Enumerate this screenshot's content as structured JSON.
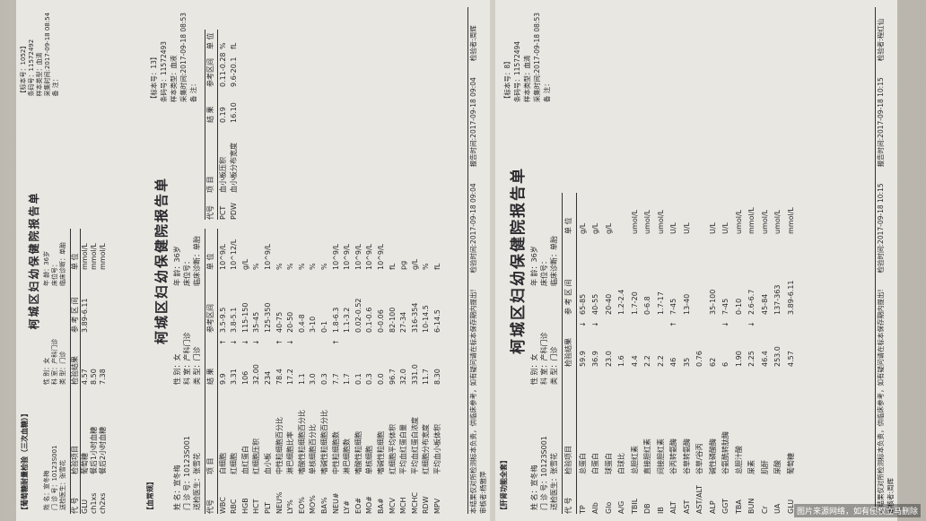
{
  "reports": [
    {
      "tag": "【葡萄糖耐量检验（三次血糖）】",
      "title": "柯城区妇幼保健院报告单",
      "meta": [
        "【标本号：1052】",
        "条码号：11572492",
        "样本类型：血清",
        "采集时间:2017-09-18 08:54",
        "备 注："
      ],
      "patient": [
        "姓 名：宣冬梅",
        "性 别：女",
        "年 龄：36岁",
        "门 诊 号：10123S001",
        "科 室：产科门诊",
        "床位号：",
        "送检医生：张雪花",
        "类 型：门诊",
        "临床诊断：单胎"
      ],
      "headers": [
        "代 号",
        "检验项目",
        "检验结果",
        "参 考 区 间",
        "单 位"
      ],
      "rows": [
        {
          "code": "GLU",
          "name": "葡萄糖",
          "result": "4.57",
          "range": "3.89-6.11",
          "unit": "mmol/L"
        },
        {
          "code": "ch1xs",
          "name": "餐后1小时血糖",
          "result": "8.50",
          "unit": "mmol/L"
        },
        {
          "code": "ch2xs",
          "name": "餐后2小时血糖",
          "result": "7.38",
          "unit": "mmol/L"
        }
      ]
    },
    {
      "tag": "【血常规】",
      "title": "柯城区妇幼保健院报告单",
      "meta": [
        "【标本号：13】",
        "条码号：11572493",
        "样本类型：血液",
        "采集时间:2017-09-18 08:53",
        "备 注："
      ],
      "patient": [
        "姓 名：宣冬梅",
        "性 别：女",
        "年 龄：36岁",
        "门 诊 号：10123S001",
        "科 室：产科门诊",
        "床位号：",
        "送检医生：张雪花",
        "类 型：门诊",
        "临床诊断：单胎"
      ],
      "headers": [
        "代号",
        "项 目",
        "结 果",
        "参考区间",
        "单 位"
      ],
      "rows": [
        {
          "code": "WBC",
          "name": "白细胞",
          "result": "9.9",
          "flag": "↑",
          "range": "3.5-9.5",
          "unit": "10^9/L"
        },
        {
          "code": "RBC",
          "name": "红细胞",
          "result": "3.31",
          "flag": "↓",
          "range": "3.8-5.1",
          "unit": "10^12/L"
        },
        {
          "code": "HGB",
          "name": "血红蛋白",
          "result": "106",
          "flag": "↓",
          "range": "115-150",
          "unit": "g/L"
        },
        {
          "code": "HCT",
          "name": "红细胞压积",
          "result": "32.00",
          "flag": "↓",
          "range": "35-45",
          "unit": "%"
        },
        {
          "code": "PLT",
          "name": "血小板",
          "result": "234",
          "range": "125-350",
          "unit": "10^9/L"
        },
        {
          "code": "NEU%",
          "name": "中性粒细胞百分比",
          "result": "78.4",
          "flag": "↑",
          "range": "40-75",
          "unit": "%"
        },
        {
          "code": "LY%",
          "name": "淋巴细胞比率",
          "result": "17.2",
          "flag": "↓",
          "range": "20-50",
          "unit": "%"
        },
        {
          "code": "EO%",
          "name": "嗜酸性粒细胞百分比",
          "result": "1.1",
          "range": "0.4-8",
          "unit": "%"
        },
        {
          "code": "MO%",
          "name": "单核细胞百分比",
          "result": "3.0",
          "range": "3-10",
          "unit": "%"
        },
        {
          "code": "BA%",
          "name": "嗜碱性粒细胞百分比",
          "result": "0.3",
          "range": "0-1",
          "unit": "%"
        },
        {
          "code": "NEU#",
          "name": "中性粒细胞数",
          "result": "7.7",
          "flag": "↑",
          "range": "1.8-6.3",
          "unit": "10^9/L"
        },
        {
          "code": "LY#",
          "name": "淋巴细胞数",
          "result": "1.7",
          "range": "1.1-3.2",
          "unit": "10^9/L"
        },
        {
          "code": "EO#",
          "name": "嗜酸性粒细胞",
          "result": "0.1",
          "range": "0.02-0.52",
          "unit": "10^9/L"
        },
        {
          "code": "MO#",
          "name": "单核细胞",
          "result": "0.3",
          "range": "0.1-0.6",
          "unit": "10^9/L"
        },
        {
          "code": "BA#",
          "name": "嗜碱性粒细胞",
          "result": "0.0",
          "range": "0-0.06",
          "unit": "10^9/L"
        },
        {
          "code": "MCV",
          "name": "红细胞平均体积",
          "result": "96.7",
          "range": "82-100",
          "unit": "fL"
        },
        {
          "code": "MCH",
          "name": "平均血红蛋白量",
          "result": "32.0",
          "range": "27-34",
          "unit": "pg"
        },
        {
          "code": "MCHC",
          "name": "平均血红蛋白浓度",
          "result": "331.0",
          "range": "316-354",
          "unit": "g/L"
        },
        {
          "code": "RDW",
          "name": "红细胞分布宽度",
          "result": "11.7",
          "range": "10-14.5",
          "unit": "%"
        },
        {
          "code": "MPV",
          "name": "平均血小板体积",
          "result": "8.30",
          "range": "6-14.5",
          "unit": "fL"
        }
      ],
      "side_headers": [
        "代号",
        "项 目",
        "结 果",
        "参考区间",
        "单 位"
      ],
      "side_rows": [
        {
          "code": "PCT",
          "name": "血小板压积",
          "result": "0.19",
          "range": "0.11-0.28",
          "unit": "%"
        },
        {
          "code": "PDW",
          "name": "血小板分布宽度",
          "result": "16.10",
          "range": "9.6-20.1",
          "unit": "fL"
        }
      ],
      "footer": [
        "检验时间:2017-09-18 09:04",
        "报告时间:2017-09-18 09:04",
        "检验者:周辉",
        "审核者:杨雅萍"
      ],
      "disclaimer": "本结果仅对所检测标本负责，供临床参考，如有疑问请在标本保存期内提出!"
    },
    {
      "tag": "【肝肾功能全套】",
      "title": "柯城区妇幼保健院报告单",
      "meta": [
        "【标本号：8】",
        "条码号：11572494",
        "样本类型：血清",
        "采集时间:2017-09-18 08:53",
        "备 注："
      ],
      "patient": [
        "姓 名：宣冬梅",
        "性 别：女",
        "年 龄：36岁",
        "门 诊 号：10123S001",
        "科 室：产科门诊",
        "床位号：",
        "送检医生：张雪花",
        "类 型：门诊",
        "临床诊断：单胎"
      ],
      "headers": [
        "代 号",
        "检验项目",
        "检验结果",
        "参 考 区 间",
        "单 位"
      ],
      "rows": [
        {
          "code": "TP",
          "name": "总蛋白",
          "result": "59.9",
          "flag": "↓",
          "range": "65-85",
          "unit": "g/L"
        },
        {
          "code": "Alb",
          "name": "白蛋白",
          "result": "36.9",
          "flag": "↓",
          "range": "40-55",
          "unit": "g/L"
        },
        {
          "code": "Glo",
          "name": "球蛋白",
          "result": "23.0",
          "range": "20-40",
          "unit": "g/L"
        },
        {
          "code": "A/G",
          "name": "白球比",
          "result": "1.6",
          "range": "1.2-2.4"
        },
        {
          "code": "TBIL",
          "name": "总胆红素",
          "result": "4.4",
          "range": "1.7-20",
          "unit": "umol/L"
        },
        {
          "code": "DB",
          "name": "直接胆红素",
          "result": "2.2",
          "range": "0-6.8",
          "unit": "umol/L"
        },
        {
          "code": "IB",
          "name": "间接胆红素",
          "result": "2.2",
          "range": "1.7-17",
          "unit": "umol/L"
        },
        {
          "code": "ALT",
          "name": "谷丙转氨酶",
          "result": "46",
          "flag": "↑",
          "range": "7-45",
          "unit": "U/L"
        },
        {
          "code": "AST",
          "name": "谷草转氨酶",
          "result": "35",
          "range": "13-40",
          "unit": "U/L"
        },
        {
          "code": "AST/ALT",
          "name": "谷草/谷丙",
          "result": "0.76"
        },
        {
          "code": "ALP",
          "name": "碱性磷酸酶",
          "result": "62",
          "range": "35-100",
          "unit": "U/L"
        },
        {
          "code": "GGT",
          "name": "谷氨酰转肽酶",
          "result": "6",
          "flag": "↓",
          "range": "7-45",
          "unit": "U/L"
        },
        {
          "code": "TBA",
          "name": "总胆汁酸",
          "result": "1.90",
          "range": "0-10",
          "unit": "umol/L"
        },
        {
          "code": "BUN",
          "name": "尿素",
          "result": "2.25",
          "flag": "↓",
          "range": "2.6-6.7",
          "unit": "mmol/L"
        },
        {
          "code": "Cr",
          "name": "肌酐",
          "result": "46.4",
          "range": "45-84",
          "unit": "umol/L"
        },
        {
          "code": "UA",
          "name": "尿酸",
          "result": "253.0",
          "range": "137-363",
          "unit": "umol/L"
        },
        {
          "code": "GLU",
          "name": "葡萄糖",
          "result": "4.57",
          "range": "3.89-6.11",
          "unit": "mmol/L"
        }
      ],
      "footer": [
        "检验时间:2017-09-18 10:15",
        "报告时间:2017-09-18 10:15",
        "检验者:程红仙",
        "审核者:周辉"
      ],
      "disclaimer": "本结果仅对所检测标本负责，供临床参考，如有疑问请在标本保存期内提出!"
    }
  ],
  "watermark": "图片来源网络，如有侵权立马删除"
}
